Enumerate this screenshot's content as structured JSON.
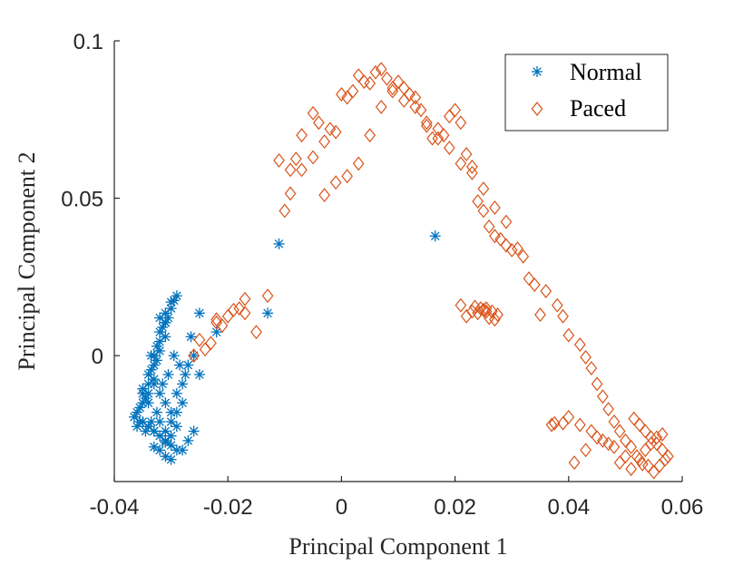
{
  "chart_data": {
    "type": "scatter",
    "title": "",
    "xlabel": "Principal Component 1",
    "ylabel": "Principal Component 2",
    "xlim": [
      -0.04,
      0.06
    ],
    "ylim": [
      -0.04,
      0.1
    ],
    "xticks": [
      -0.04,
      -0.02,
      0,
      0.02,
      0.04,
      0.06
    ],
    "xtick_labels": [
      "-0.04",
      "-0.02",
      "0",
      "0.02",
      "0.04",
      "0.06"
    ],
    "yticks": [
      0,
      0.05,
      0.1
    ],
    "ytick_labels": [
      "0",
      "0.05",
      "0.1"
    ],
    "legend_position": "top-right",
    "series": [
      {
        "name": "Normal",
        "marker": "asterisk",
        "color": "#0072BD",
        "x": [
          -0.011,
          -0.013,
          0.0165,
          -0.025,
          -0.022,
          -0.0265,
          -0.026,
          -0.027,
          -0.025,
          -0.029,
          -0.0295,
          -0.03,
          -0.03,
          -0.031,
          -0.0305,
          -0.031,
          -0.0315,
          -0.032,
          -0.031,
          -0.032,
          -0.0325,
          -0.032,
          -0.033,
          -0.0325,
          -0.033,
          -0.0335,
          -0.034,
          -0.033,
          -0.034,
          -0.035,
          -0.034,
          -0.0345,
          -0.035,
          -0.0355,
          -0.036,
          -0.0365,
          -0.035,
          -0.034,
          -0.033,
          -0.032,
          -0.031,
          -0.03,
          -0.029,
          -0.028,
          -0.027,
          -0.026,
          -0.03,
          -0.031,
          -0.032,
          -0.033,
          -0.029,
          -0.028,
          -0.032,
          -0.033,
          -0.031,
          -0.03,
          -0.029,
          -0.028,
          -0.0275,
          -0.0285,
          -0.0295,
          -0.0305,
          -0.0315,
          -0.0325,
          -0.0335,
          -0.0345,
          -0.0355,
          -0.033,
          -0.031,
          -0.03,
          -0.032,
          -0.031,
          -0.03,
          -0.029,
          -0.034,
          -0.035,
          -0.036,
          -0.031,
          -0.032,
          -0.0335
        ],
        "y": [
          0.0355,
          0.0135,
          0.038,
          0.0135,
          0.0075,
          0.006,
          0.0,
          -0.003,
          -0.006,
          0.019,
          0.0175,
          0.017,
          0.015,
          0.0135,
          0.012,
          0.0105,
          0.009,
          0.0075,
          0.006,
          0.0045,
          0.003,
          0.0015,
          0.0,
          -0.0015,
          -0.003,
          -0.0045,
          -0.006,
          -0.0075,
          -0.009,
          -0.0105,
          -0.012,
          -0.0135,
          -0.015,
          -0.0165,
          -0.018,
          -0.0195,
          -0.021,
          -0.0225,
          -0.024,
          -0.0255,
          -0.027,
          -0.0285,
          -0.03,
          -0.03,
          -0.027,
          -0.024,
          -0.018,
          -0.015,
          -0.012,
          -0.009,
          -0.012,
          -0.015,
          -0.021,
          -0.024,
          -0.024,
          -0.021,
          -0.018,
          -0.009,
          -0.006,
          -0.003,
          0.0,
          -0.006,
          -0.009,
          -0.018,
          -0.021,
          -0.024,
          -0.021,
          -0.029,
          -0.032,
          -0.033,
          -0.03,
          -0.0275,
          -0.0255,
          -0.0225,
          -0.015,
          -0.012,
          -0.0225,
          0.0105,
          0.012,
          0.0
        ]
      },
      {
        "name": "Paced",
        "marker": "diamond",
        "color": "#D95319",
        "x": [
          -0.025,
          -0.022,
          -0.021,
          -0.018,
          -0.017,
          -0.015,
          -0.013,
          -0.01,
          -0.009,
          -0.008,
          -0.007,
          -0.005,
          -0.004,
          -0.003,
          -0.002,
          -0.001,
          0.0,
          0.001,
          0.002,
          0.003,
          0.004,
          0.005,
          0.006,
          0.007,
          0.008,
          0.009,
          0.01,
          0.011,
          0.012,
          0.013,
          0.014,
          0.015,
          0.016,
          0.017,
          0.018,
          0.019,
          0.02,
          0.021,
          0.022,
          0.023,
          0.024,
          0.025,
          0.026,
          0.027,
          0.028,
          0.029,
          0.03,
          0.032,
          0.034,
          0.036,
          0.038,
          0.039,
          0.04,
          0.042,
          0.043,
          0.044,
          0.045,
          0.046,
          0.047,
          0.048,
          0.049,
          0.05,
          0.051,
          0.052,
          0.053,
          0.054,
          0.055,
          0.056,
          0.057,
          0.0565,
          0.0555,
          0.0545,
          0.0535,
          0.0525,
          0.0515,
          0.05,
          0.049,
          0.047,
          0.045,
          0.043,
          0.041,
          0.039,
          0.037,
          0.035,
          0.033,
          0.031,
          0.029,
          0.027,
          0.025,
          0.023,
          0.021,
          0.019,
          0.017,
          0.015,
          0.013,
          0.011,
          0.009,
          0.007,
          0.005,
          0.003,
          0.001,
          -0.001,
          -0.003,
          -0.005,
          -0.007,
          -0.009,
          -0.011,
          0.0255,
          0.0265,
          0.0275,
          0.026,
          0.025,
          0.024,
          0.0235,
          0.0245,
          0.0255,
          0.027,
          0.023,
          0.022,
          0.021,
          -0.026,
          -0.024,
          -0.023,
          -0.022,
          -0.02,
          -0.019,
          -0.017,
          0.0545,
          0.0535,
          0.0555,
          0.0565,
          0.0575,
          0.0525,
          0.051,
          0.048,
          0.046,
          0.044,
          0.042,
          0.04,
          0.0375
        ],
        "y": [
          0.005,
          0.0105,
          0.0095,
          0.015,
          0.018,
          0.0075,
          0.019,
          0.046,
          0.0515,
          0.0625,
          0.059,
          0.077,
          0.074,
          0.068,
          0.072,
          0.071,
          0.083,
          0.082,
          0.084,
          0.089,
          0.087,
          0.0865,
          0.09,
          0.091,
          0.088,
          0.084,
          0.087,
          0.085,
          0.083,
          0.082,
          0.078,
          0.074,
          0.069,
          0.072,
          0.07,
          0.076,
          0.078,
          0.074,
          0.064,
          0.06,
          0.049,
          0.046,
          0.041,
          0.038,
          0.037,
          0.035,
          0.0335,
          0.0315,
          0.0225,
          0.0205,
          0.016,
          0.0125,
          0.0065,
          0.0035,
          -0.0005,
          -0.004,
          -0.009,
          -0.013,
          -0.017,
          -0.021,
          -0.024,
          -0.027,
          -0.029,
          -0.032,
          -0.0345,
          -0.035,
          -0.037,
          -0.035,
          -0.033,
          -0.03,
          -0.028,
          -0.026,
          -0.024,
          -0.022,
          -0.02,
          -0.032,
          -0.034,
          -0.028,
          -0.026,
          -0.03,
          -0.034,
          -0.0215,
          -0.022,
          0.013,
          0.0245,
          0.034,
          0.0425,
          0.047,
          0.053,
          0.058,
          0.061,
          0.066,
          0.069,
          0.073,
          0.079,
          0.081,
          0.085,
          0.079,
          0.07,
          0.061,
          0.057,
          0.055,
          0.051,
          0.063,
          0.07,
          0.059,
          0.062,
          0.015,
          0.014,
          0.013,
          0.012,
          0.0145,
          0.0135,
          0.0155,
          0.015,
          0.014,
          0.0115,
          0.014,
          0.0125,
          0.016,
          0.0,
          0.002,
          0.004,
          0.0115,
          0.0125,
          0.0145,
          0.0135,
          -0.028,
          -0.03,
          -0.026,
          -0.025,
          -0.032,
          -0.033,
          -0.036,
          -0.029,
          -0.027,
          -0.024,
          -0.022,
          -0.0195,
          -0.0215
        ]
      }
    ]
  }
}
